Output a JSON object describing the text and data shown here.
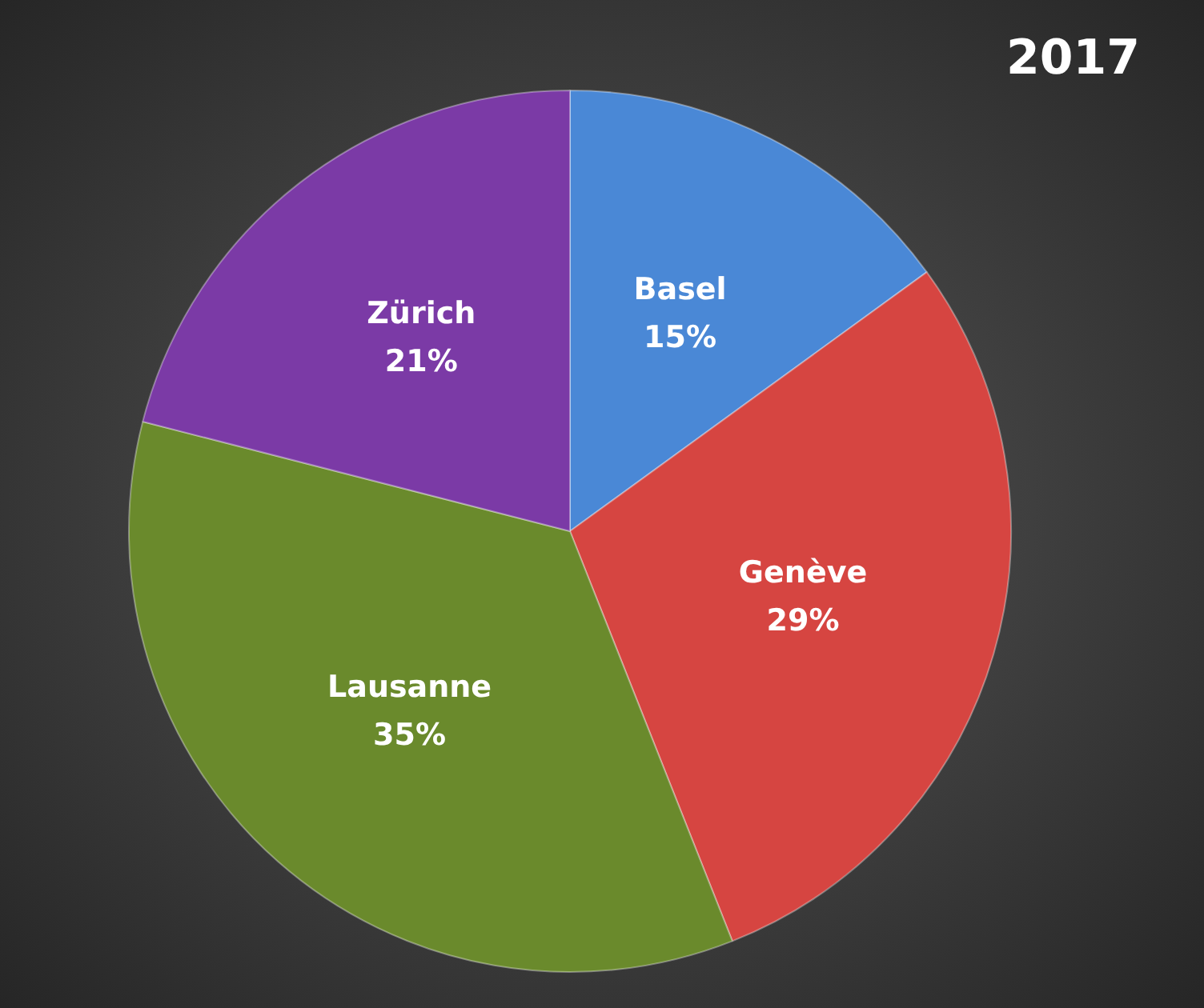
{
  "chart_data": {
    "type": "pie",
    "title": "2017",
    "categories": [
      "Basel",
      "Genève",
      "Lausanne",
      "Zürich"
    ],
    "values": [
      15,
      29,
      35,
      21
    ],
    "value_labels": [
      "15%",
      "29%",
      "35%",
      "21%"
    ],
    "colors": [
      "#4a88d6",
      "#d64541",
      "#6a8a2c",
      "#7b3aa6"
    ],
    "legend": false
  }
}
